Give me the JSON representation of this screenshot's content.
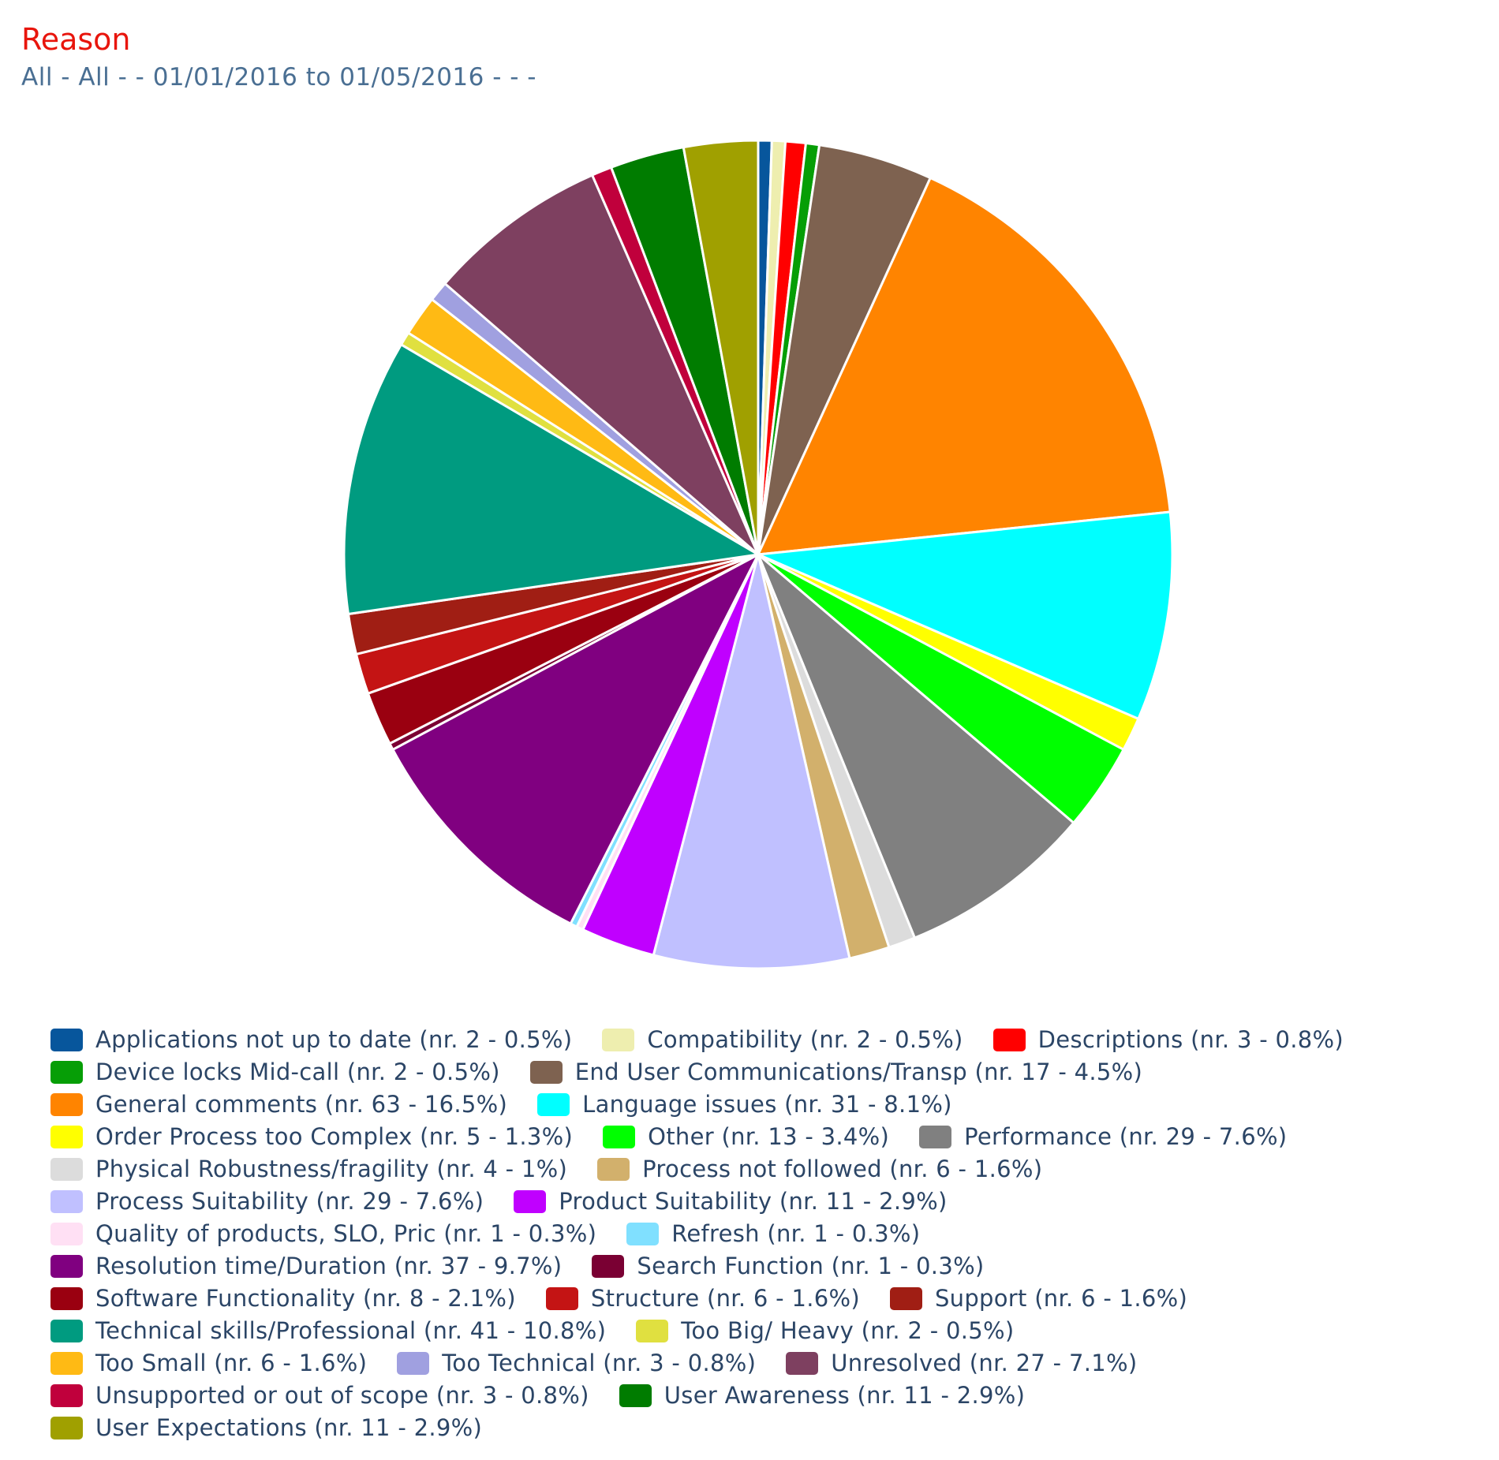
{
  "title": "Reason",
  "subtitle": "All - All - - 01/01/2016 to 01/05/2016 - - -",
  "chart_data": {
    "type": "pie",
    "title": "Reason",
    "subtitle": "All - All - - 01/01/2016 to 01/05/2016 - - -",
    "legend_position": "bottom",
    "slices": [
      {
        "label": "Applications not up to date",
        "value": 2,
        "percent": "0.5%",
        "color": "#07569c"
      },
      {
        "label": "Compatibility",
        "value": 2,
        "percent": "0.5%",
        "color": "#eeeeaf"
      },
      {
        "label": "Descriptions",
        "value": 3,
        "percent": "0.8%",
        "color": "#ff0000"
      },
      {
        "label": "Device locks Mid-call",
        "value": 2,
        "percent": "0.5%",
        "color": "#069e06"
      },
      {
        "label": "End User Communications/Transp",
        "value": 17,
        "percent": "4.5%",
        "color": "#7e6250"
      },
      {
        "label": "General comments",
        "value": 63,
        "percent": "16.5%",
        "color": "#ff8400"
      },
      {
        "label": "Language issues",
        "value": 31,
        "percent": "8.1%",
        "color": "#00ffff"
      },
      {
        "label": "Order Process too Complex",
        "value": 5,
        "percent": "1.3%",
        "color": "#ffff00"
      },
      {
        "label": "Other",
        "value": 13,
        "percent": "3.4%",
        "color": "#00ff00"
      },
      {
        "label": "Performance",
        "value": 29,
        "percent": "7.6%",
        "color": "#808080"
      },
      {
        "label": "Physical Robustness/fragility",
        "value": 4,
        "percent": "1%",
        "color": "#dcdcdc"
      },
      {
        "label": "Process not followed",
        "value": 6,
        "percent": "1.6%",
        "color": "#d2b06c"
      },
      {
        "label": "Process Suitability",
        "value": 29,
        "percent": "7.6%",
        "color": "#c0c0ff"
      },
      {
        "label": "Product Suitability",
        "value": 11,
        "percent": "2.9%",
        "color": "#c000ff"
      },
      {
        "label": "Quality of products, SLO, Pric",
        "value": 1,
        "percent": "0.3%",
        "color": "#ffe0f4"
      },
      {
        "label": "Refresh",
        "value": 1,
        "percent": "0.3%",
        "color": "#80e0ff"
      },
      {
        "label": "Resolution time/Duration",
        "value": 37,
        "percent": "9.7%",
        "color": "#800080"
      },
      {
        "label": "Search Function",
        "value": 1,
        "percent": "0.3%",
        "color": "#7a0033"
      },
      {
        "label": "Software Functionality",
        "value": 8,
        "percent": "2.1%",
        "color": "#9a0010"
      },
      {
        "label": "Structure",
        "value": 6,
        "percent": "1.6%",
        "color": "#c41414"
      },
      {
        "label": "Support",
        "value": 6,
        "percent": "1.6%",
        "color": "#a01e14"
      },
      {
        "label": "Technical skills/Professional",
        "value": 41,
        "percent": "10.8%",
        "color": "#009b80"
      },
      {
        "label": "Too Big/ Heavy",
        "value": 2,
        "percent": "0.5%",
        "color": "#e0e040"
      },
      {
        "label": "Too Small",
        "value": 6,
        "percent": "1.6%",
        "color": "#ffba14"
      },
      {
        "label": "Too Technical",
        "value": 3,
        "percent": "0.8%",
        "color": "#a0a0e0"
      },
      {
        "label": "Unresolved",
        "value": 27,
        "percent": "7.1%",
        "color": "#7e4060"
      },
      {
        "label": "Unsupported or out of scope",
        "value": 3,
        "percent": "0.8%",
        "color": "#c0003c"
      },
      {
        "label": "User Awareness",
        "value": 11,
        "percent": "2.9%",
        "color": "#007c00"
      },
      {
        "label": "User Expectations",
        "value": 11,
        "percent": "2.9%",
        "color": "#a0a000"
      }
    ],
    "legend": [
      "Applications not up to date (nr. 2 - 0.5%)",
      "Compatibility (nr. 2 - 0.5%)",
      "Descriptions (nr. 3 - 0.8%)",
      "Device locks Mid-call (nr. 2 - 0.5%)",
      "End User Communications/Transp (nr. 17 - 4.5%)",
      "General comments (nr. 63 - 16.5%)",
      "Language issues (nr. 31 - 8.1%)",
      "Order Process too Complex (nr. 5 - 1.3%)",
      "Other (nr. 13 - 3.4%)",
      "Performance (nr. 29 - 7.6%)",
      "Physical Robustness/fragility (nr. 4 - 1%)",
      "Process not followed (nr. 6 - 1.6%)",
      "Process Suitability (nr. 29 - 7.6%)",
      "Product Suitability (nr. 11 - 2.9%)",
      "Quality of products, SLO, Pric (nr. 1 - 0.3%)",
      "Refresh (nr. 1 - 0.3%)",
      "Resolution time/Duration (nr. 37 - 9.7%)",
      "Search Function (nr. 1 - 0.3%)",
      "Software Functionality (nr. 8 - 2.1%)",
      "Structure (nr. 6 - 1.6%)",
      "Support (nr. 6 - 1.6%)",
      "Technical skills/Professional (nr. 41 - 10.8%)",
      "Too Big/ Heavy (nr. 2 - 0.5%)",
      "Too Small (nr. 6 - 1.6%)",
      "Too Technical (nr. 3 - 0.8%)",
      "Unresolved (nr. 27 - 7.1%)",
      "Unsupported or out of scope (nr. 3 - 0.8%)",
      "User Awareness (nr. 11 - 2.9%)",
      "User Expectations (nr. 11 - 2.9%)"
    ]
  }
}
